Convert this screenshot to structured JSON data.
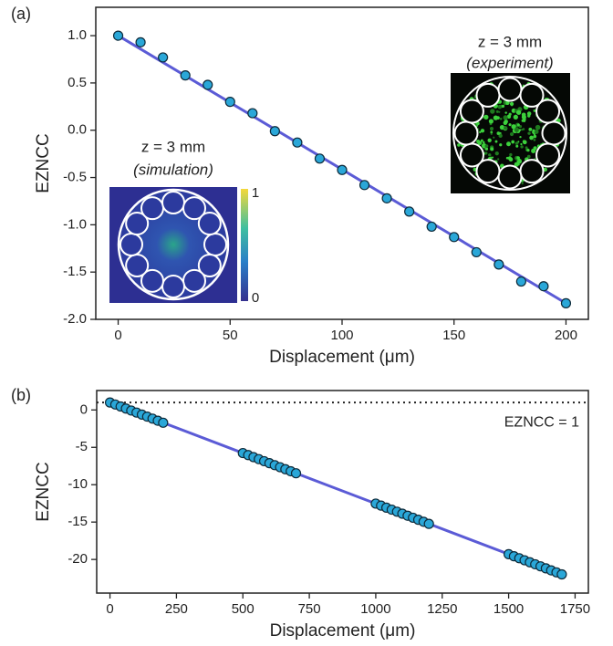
{
  "chart_data": [
    {
      "type": "scatter",
      "panel_label": "(a)",
      "x_label": "Displacement (μm)",
      "y_label": "EZNCC",
      "x": [
        0,
        10,
        20,
        30,
        40,
        50,
        60,
        70,
        80,
        90,
        100,
        110,
        120,
        130,
        140,
        150,
        160,
        170,
        180,
        190,
        200
      ],
      "values": [
        1.0,
        0.93,
        0.77,
        0.58,
        0.48,
        0.3,
        0.18,
        -0.01,
        -0.13,
        -0.3,
        -0.42,
        -0.58,
        -0.72,
        -0.86,
        -1.02,
        -1.13,
        -1.29,
        -1.42,
        -1.6,
        -1.65,
        -1.83
      ],
      "color": "#2aa7d8",
      "edge_color": "#0d2a3a",
      "fit": {
        "x": [
          0,
          200
        ],
        "values": [
          1.0,
          -1.83
        ],
        "color": "#5b5bd6"
      },
      "xlim": [
        -10,
        210
      ],
      "xticks": [
        0,
        50,
        100,
        150,
        200
      ],
      "ylim": [
        -2.0,
        1.3
      ],
      "yticks": [
        {
          "value": -2,
          "label": "-2.0"
        },
        {
          "value": -1.5,
          "label": "-1.5"
        },
        {
          "value": -1,
          "label": "-1.0"
        },
        {
          "value": -0.5,
          "label": "-0.5"
        },
        {
          "value": 0,
          "label": "0.0"
        },
        {
          "value": 0.5,
          "label": "0.5"
        },
        {
          "value": 1,
          "label": "1.0"
        }
      ],
      "insets": [
        {
          "title": "z = 3 mm",
          "subtitle": "(simulation)",
          "colorbar_ticks": [
            1,
            0
          ]
        },
        {
          "title": "z = 3 mm",
          "subtitle": "(experiment)"
        }
      ]
    },
    {
      "type": "scatter",
      "panel_label": "(b)",
      "x_label": "Displacement (μm)",
      "y_label": "EZNCC",
      "x": [
        0,
        20,
        40,
        60,
        80,
        100,
        120,
        140,
        160,
        180,
        200,
        500,
        520,
        540,
        560,
        580,
        600,
        620,
        640,
        660,
        680,
        700,
        1000,
        1020,
        1040,
        1060,
        1080,
        1100,
        1120,
        1140,
        1160,
        1180,
        1200,
        1500,
        1520,
        1540,
        1560,
        1580,
        1600,
        1620,
        1640,
        1660,
        1680,
        1700
      ],
      "values": [
        1.0,
        0.73,
        0.46,
        0.19,
        -0.08,
        -0.35,
        -0.62,
        -0.89,
        -1.16,
        -1.44,
        -1.71,
        -5.77,
        -6.04,
        -6.31,
        -6.58,
        -6.85,
        -7.12,
        -7.39,
        -7.66,
        -7.93,
        -8.2,
        -8.47,
        -12.53,
        -12.8,
        -13.07,
        -13.34,
        -13.61,
        -13.88,
        -14.15,
        -14.42,
        -14.69,
        -14.96,
        -15.24,
        -19.3,
        -19.57,
        -19.84,
        -20.11,
        -20.38,
        -20.65,
        -20.92,
        -21.19,
        -21.46,
        -21.73,
        -22.0
      ],
      "color": "#2aa7d8",
      "edge_color": "#0d2a3a",
      "fit": {
        "x": [
          0,
          1700
        ],
        "values": [
          1.0,
          -22.0
        ],
        "color": "#5b5bd6"
      },
      "reference_line": {
        "value": 1,
        "label": "EZNCC = 1"
      },
      "xlim": [
        -50,
        1800
      ],
      "xticks": [
        0,
        250,
        500,
        750,
        1000,
        1250,
        1500,
        1750
      ],
      "ylim": [
        -24.5,
        2.6
      ],
      "yticks": [
        -20,
        -15,
        -10,
        -5,
        0
      ]
    }
  ]
}
